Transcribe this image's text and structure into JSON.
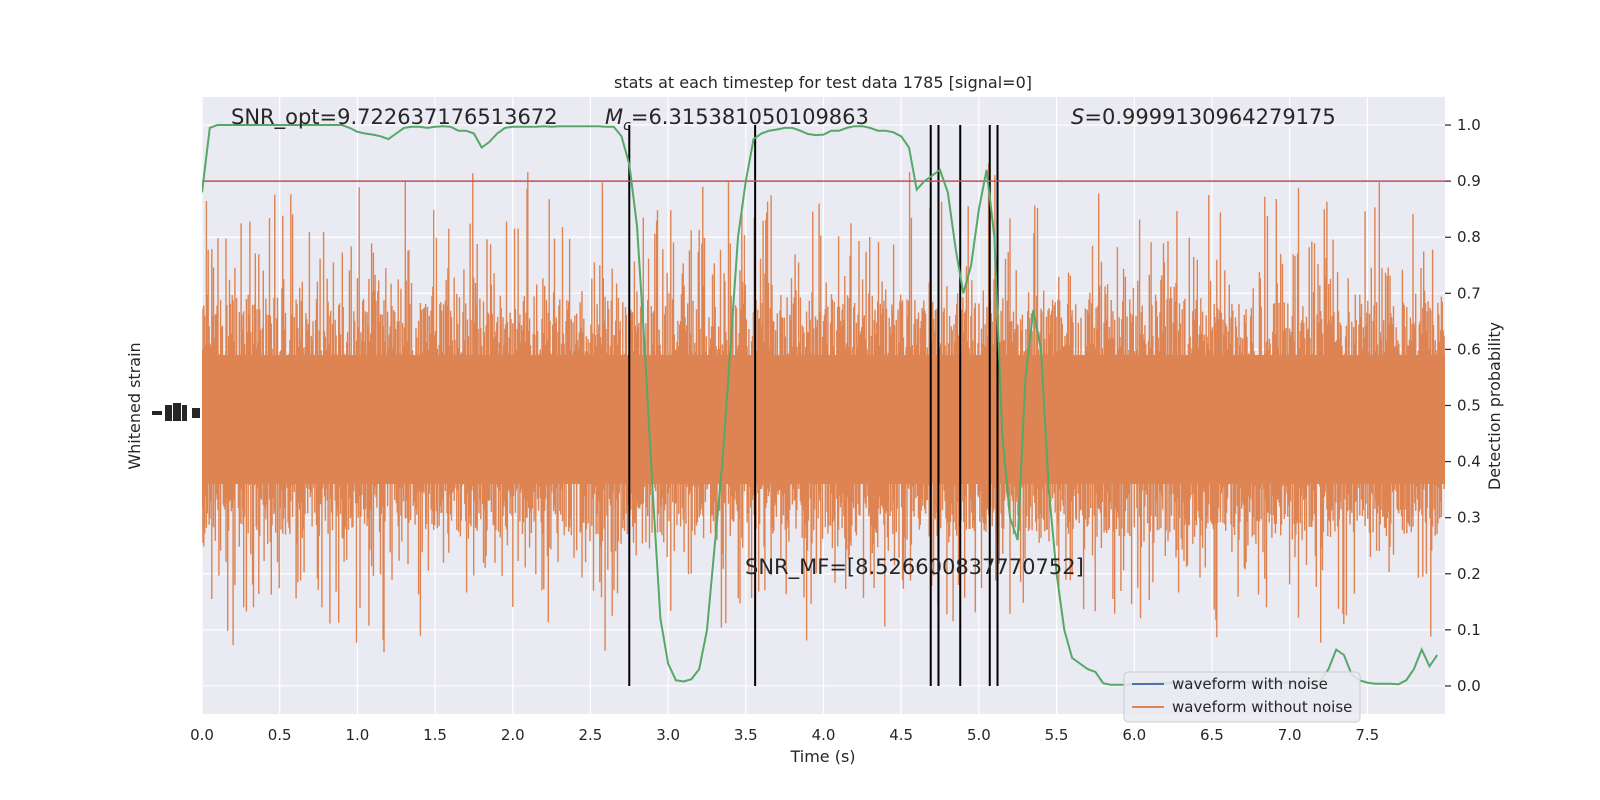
{
  "chart_data": {
    "type": "line",
    "title": "stats at each timestep for test data 1785 [signal=0]",
    "xlabel": "Time (s)",
    "ylabel_left": "Whitened strain",
    "ylabel_right": "Detection probability",
    "xlim": [
      0.0,
      8.0
    ],
    "ylim_right": [
      -0.05,
      1.05
    ],
    "x_ticks": [
      "0.0",
      "0.5",
      "1.0",
      "1.5",
      "2.0",
      "2.5",
      "3.0",
      "3.5",
      "4.0",
      "4.5",
      "5.0",
      "5.5",
      "6.0",
      "6.5",
      "7.0",
      "7.5"
    ],
    "x_tick_values": [
      0.0,
      0.5,
      1.0,
      1.5,
      2.0,
      2.5,
      3.0,
      3.5,
      4.0,
      4.5,
      5.0,
      5.5,
      6.0,
      6.5,
      7.0,
      7.5
    ],
    "y_right_ticks": [
      "0.0",
      "0.1",
      "0.2",
      "0.3",
      "0.4",
      "0.5",
      "0.6",
      "0.7",
      "0.8",
      "0.9",
      "1.0"
    ],
    "y_right_tick_values": [
      0.0,
      0.1,
      0.2,
      0.3,
      0.4,
      0.5,
      0.6,
      0.7,
      0.8,
      0.9,
      1.0
    ],
    "grid": true,
    "legend_position": "lower-right",
    "series": [
      {
        "name": "waveform with noise",
        "color": "#4c72b0",
        "values": []
      },
      {
        "name": "waveform without noise",
        "color": "#dd8452",
        "style": "dense noise band around 0.47"
      },
      {
        "color": "#55a868",
        "x": [
          0.0,
          0.05,
          0.1,
          0.15,
          0.2,
          0.25,
          0.3,
          0.35,
          0.4,
          0.45,
          0.5,
          0.55,
          0.6,
          0.65,
          0.7,
          0.75,
          0.8,
          0.85,
          0.9,
          0.95,
          1.0,
          1.05,
          1.1,
          1.15,
          1.2,
          1.25,
          1.3,
          1.35,
          1.4,
          1.45,
          1.5,
          1.55,
          1.6,
          1.65,
          1.7,
          1.75,
          1.8,
          1.85,
          1.9,
          1.95,
          2.0,
          2.05,
          2.1,
          2.15,
          2.2,
          2.25,
          2.3,
          2.35,
          2.4,
          2.45,
          2.5,
          2.55,
          2.6,
          2.65,
          2.7,
          2.75,
          2.8,
          2.85,
          2.9,
          2.95,
          3.0,
          3.05,
          3.1,
          3.15,
          3.2,
          3.25,
          3.3,
          3.35,
          3.4,
          3.45,
          3.5,
          3.55,
          3.6,
          3.65,
          3.7,
          3.75,
          3.8,
          3.85,
          3.9,
          3.95,
          4.0,
          4.05,
          4.1,
          4.15,
          4.2,
          4.25,
          4.3,
          4.35,
          4.4,
          4.45,
          4.5,
          4.55,
          4.6,
          4.65,
          4.7,
          4.75,
          4.8,
          4.85,
          4.9,
          4.95,
          5.0,
          5.05,
          5.1,
          5.15,
          5.2,
          5.25,
          5.3,
          5.35,
          5.4,
          5.45,
          5.5,
          5.55,
          5.6,
          5.65,
          5.7,
          5.75,
          5.8,
          5.85,
          5.9,
          5.95,
          6.0,
          6.05,
          6.1,
          6.15,
          6.2,
          6.25,
          6.3,
          6.35,
          6.4,
          6.45,
          6.5,
          6.55,
          6.6,
          6.65,
          6.7,
          6.75,
          6.8,
          6.85,
          6.9,
          6.95,
          7.0,
          7.05,
          7.1,
          7.15,
          7.2,
          7.25,
          7.3,
          7.35,
          7.4,
          7.45,
          7.5,
          7.55,
          7.6,
          7.65,
          7.7,
          7.75,
          7.8,
          7.85,
          7.9,
          7.95
        ],
        "values": [
          0.88,
          0.995,
          1.0,
          1.0,
          1.0,
          1.0,
          1.0,
          1.0,
          1.0,
          1.0,
          1.0,
          1.0,
          1.0,
          1.0,
          1.0,
          1.0,
          1.0,
          1.0,
          1.0,
          0.995,
          0.988,
          0.985,
          0.983,
          0.98,
          0.975,
          0.985,
          0.995,
          0.997,
          0.997,
          0.995,
          0.997,
          0.998,
          0.997,
          0.99,
          0.99,
          0.985,
          0.96,
          0.97,
          0.985,
          0.995,
          0.997,
          0.997,
          0.997,
          0.997,
          0.998,
          0.997,
          0.998,
          0.998,
          0.998,
          0.998,
          0.998,
          0.998,
          0.997,
          0.997,
          0.98,
          0.93,
          0.82,
          0.6,
          0.35,
          0.12,
          0.04,
          0.01,
          0.008,
          0.012,
          0.03,
          0.1,
          0.25,
          0.4,
          0.6,
          0.8,
          0.9,
          0.975,
          0.985,
          0.99,
          0.992,
          0.995,
          0.995,
          0.99,
          0.984,
          0.982,
          0.983,
          0.99,
          0.99,
          0.995,
          0.998,
          0.998,
          0.995,
          0.99,
          0.99,
          0.987,
          0.98,
          0.96,
          0.885,
          0.9,
          0.91,
          0.92,
          0.88,
          0.78,
          0.7,
          0.75,
          0.85,
          0.92,
          0.8,
          0.45,
          0.3,
          0.26,
          0.55,
          0.67,
          0.6,
          0.35,
          0.2,
          0.1,
          0.05,
          0.04,
          0.03,
          0.025,
          0.005,
          0.002,
          0.002,
          0.002,
          0.003,
          0.003,
          0.004,
          0.005,
          0.005,
          0.006,
          0.006,
          0.005,
          0.005,
          0.005,
          0.005,
          0.006,
          0.006,
          0.006,
          0.006,
          0.006,
          0.006,
          0.006,
          0.006,
          0.006,
          0.006,
          0.006,
          0.006,
          0.006,
          0.01,
          0.03,
          0.065,
          0.055,
          0.02,
          0.01,
          0.006,
          0.004,
          0.004,
          0.004,
          0.003,
          0.01,
          0.03,
          0.065,
          0.035,
          0.055
        ]
      }
    ],
    "threshold_line": {
      "value": 0.9,
      "color": "#c44e52"
    },
    "vertical_markers": [
      2.75,
      3.56,
      4.69,
      4.74,
      4.88,
      5.07,
      5.12
    ],
    "annotations": {
      "snr_opt": "SNR_opt=9.722637176513672",
      "mc": "6.315381050109863",
      "s": "0.9999130964279175",
      "snr_mf": "SNR_MF=[8.526600837770752]"
    }
  }
}
